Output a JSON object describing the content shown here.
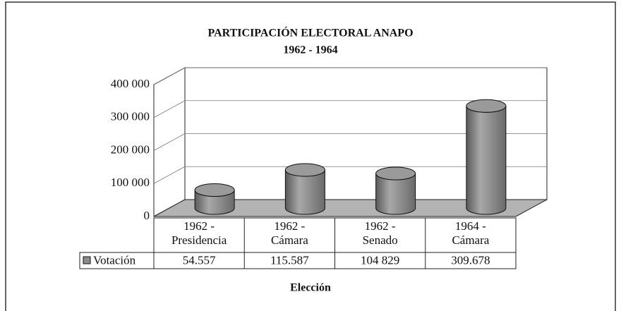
{
  "chart_data": {
    "type": "bar",
    "title": "PARTICIPACIÓN ELECTORAL ANAPO",
    "subtitle": "1962 - 1964",
    "x_label": "Elección",
    "categories": [
      "1962 -\nPresidencia",
      "1962 -\nCámara",
      "1962 -\nSenado",
      "1964 -\nCámara"
    ],
    "series": [
      {
        "name": "Votación",
        "color": "#8c8c8c",
        "values": [
          54557,
          115587,
          104829,
          309678
        ],
        "value_labels": [
          "54.557",
          "115.587",
          "104 829",
          "309.678"
        ]
      }
    ],
    "ylim": [
      0,
      400000
    ],
    "yticks": [
      0,
      {
        "value": 100000,
        "label": "100 000"
      },
      {
        "value": 200000,
        "label": "200 000"
      },
      {
        "value": 300000,
        "label": "300 000"
      },
      {
        "value": 400000,
        "label": "400 000"
      }
    ],
    "grid": true
  }
}
